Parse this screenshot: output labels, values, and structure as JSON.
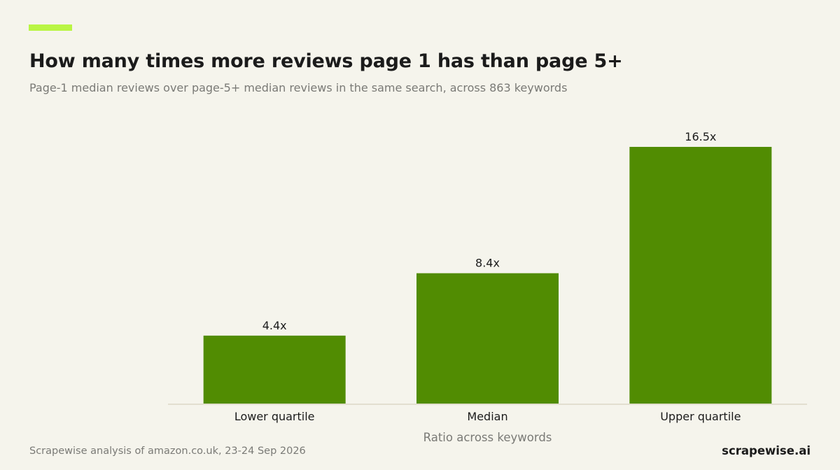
{
  "header": {
    "title": "How many times more reviews page 1 has than page 5+",
    "subtitle": "Page-1 median reviews over page-5+ median reviews in the same search, across 863 keywords"
  },
  "footer": {
    "source": "Scrapewise analysis of amazon.co.uk, 23-24 Sep 2026",
    "brand": "scrapewise.ai"
  },
  "colors": {
    "accent": "#b9f544",
    "bar": "#518c02",
    "baseline": "#e2dfd0",
    "label": "#1b1b1b",
    "axis_title": "#7a7a76"
  },
  "chart_data": {
    "type": "bar",
    "title": "How many times more reviews page 1 has than page 5+",
    "subtitle": "Page-1 median reviews over page-5+ median reviews in the same search, across 863 keywords",
    "xlabel": "Ratio across keywords",
    "ylabel": "",
    "categories": [
      "Lower quartile",
      "Median",
      "Upper quartile"
    ],
    "values": [
      4.4,
      8.4,
      16.5
    ],
    "data_labels": [
      "4.4x",
      "8.4x",
      "16.5x"
    ],
    "ylim": [
      0,
      16.5
    ],
    "grid": false,
    "legend": "none"
  }
}
